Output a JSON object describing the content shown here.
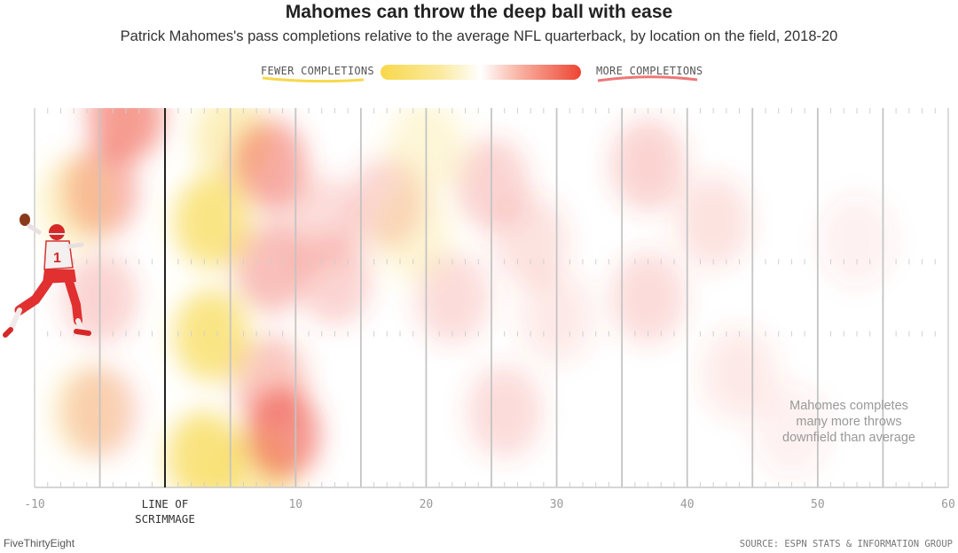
{
  "header": {
    "title": "Mahomes can throw the deep ball with ease",
    "subtitle": "Patrick Mahomes's pass completions relative to the average NFL quarterback, by location on the field, 2018-20"
  },
  "legend": {
    "fewer_label": "FEWER COMPLETIONS",
    "more_label": "MORE COMPLETIONS",
    "colors": {
      "fewer": "#f7d84a",
      "neutral": "#ffffff",
      "more": "#ee4433"
    }
  },
  "chart_data": {
    "type": "heatmap",
    "title": "Mahomes can throw the deep ball with ease",
    "subtitle": "Patrick Mahomes's pass completions relative to the average NFL quarterback, by location on the field, 2018-20",
    "xlabel": "",
    "ylabel": "",
    "x_ticks": [
      -10,
      10,
      20,
      30,
      40,
      50,
      60
    ],
    "xlim": [
      -10,
      60
    ],
    "line_of_scrimmage": 0,
    "line_of_scrimmage_label": [
      "LINE OF",
      "SCRIMMAGE"
    ],
    "annotation": [
      "Mahomes completes",
      "many more throws",
      "downfield than average"
    ],
    "scale": "relative completions: negative = fewer (yellow), positive = more (red)",
    "blobs": [
      {
        "x": -5,
        "y": 0.22,
        "v": 0.55
      },
      {
        "x": -5,
        "y": 0.5,
        "v": 0.3
      },
      {
        "x": -5,
        "y": 0.8,
        "v": 0.35
      },
      {
        "x": -3,
        "y": 0.02,
        "v": 0.7
      },
      {
        "x": -7,
        "y": 0.25,
        "v": -0.35
      },
      {
        "x": -6,
        "y": 0.8,
        "v": -0.3
      },
      {
        "x": 3.5,
        "y": 0.3,
        "v": -0.9
      },
      {
        "x": 3.5,
        "y": 0.6,
        "v": -0.9
      },
      {
        "x": 3,
        "y": 0.92,
        "v": -0.95
      },
      {
        "x": 5,
        "y": 0.08,
        "v": -0.5
      },
      {
        "x": 7,
        "y": 0.97,
        "v": -0.6
      },
      {
        "x": 8,
        "y": 0.15,
        "v": 0.6
      },
      {
        "x": 8,
        "y": 0.42,
        "v": 0.45
      },
      {
        "x": 8,
        "y": 0.72,
        "v": 0.4
      },
      {
        "x": 9,
        "y": 0.86,
        "v": 0.75
      },
      {
        "x": 13,
        "y": 0.45,
        "v": 0.3
      },
      {
        "x": 12,
        "y": 0.3,
        "v": 0.25
      },
      {
        "x": 17,
        "y": 0.25,
        "v": 0.3
      },
      {
        "x": 19,
        "y": 0.33,
        "v": -0.3
      },
      {
        "x": 20,
        "y": 0.1,
        "v": -0.3
      },
      {
        "x": 22,
        "y": 0.5,
        "v": 0.25
      },
      {
        "x": 25,
        "y": 0.2,
        "v": 0.3
      },
      {
        "x": 28,
        "y": 0.35,
        "v": 0.2
      },
      {
        "x": 26,
        "y": 0.8,
        "v": 0.25
      },
      {
        "x": 30,
        "y": 0.55,
        "v": 0.15
      },
      {
        "x": 37,
        "y": 0.15,
        "v": 0.3
      },
      {
        "x": 37,
        "y": 0.5,
        "v": 0.25
      },
      {
        "x": 42,
        "y": 0.3,
        "v": 0.2
      },
      {
        "x": 44,
        "y": 0.7,
        "v": 0.15
      },
      {
        "x": 48,
        "y": 0.85,
        "v": 0.1
      },
      {
        "x": 53,
        "y": 0.35,
        "v": 0.1
      }
    ]
  },
  "footer": {
    "brand": "FiveThirtyEight",
    "source": "SOURCE: ESPN STATS & INFORMATION GROUP"
  }
}
